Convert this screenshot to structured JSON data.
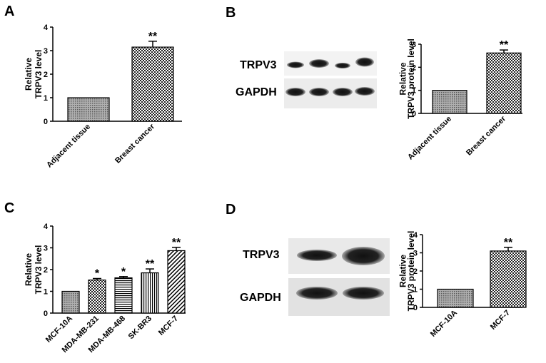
{
  "panels": [
    "A",
    "B",
    "C",
    "D"
  ],
  "blots": {
    "B": {
      "labels": [
        "TRPV3",
        "GAPDH"
      ]
    },
    "D": {
      "labels": [
        "TRPV3",
        "GAPDH"
      ]
    }
  },
  "chart_data": [
    {
      "id": "A",
      "type": "bar",
      "categories": [
        "Adjacent tissue",
        "Breast cancer"
      ],
      "values": [
        1.0,
        3.15
      ],
      "errors": [
        0,
        0.25
      ],
      "significance": [
        "",
        "**"
      ],
      "patterns": [
        "dots",
        "check"
      ],
      "ylabel_lines": [
        "Relative",
        "TRPV3 level"
      ],
      "ylim": [
        0,
        4
      ],
      "yticks": [
        0,
        1,
        2,
        3,
        4
      ]
    },
    {
      "id": "B",
      "type": "bar",
      "categories": [
        "Adjacent tissue",
        "Breast cancer"
      ],
      "values": [
        1.0,
        2.62
      ],
      "errors": [
        0,
        0.13
      ],
      "significance": [
        "",
        "**"
      ],
      "patterns": [
        "dots",
        "check"
      ],
      "ylabel_lines": [
        "Relative",
        "TRPV3 protein level"
      ],
      "ylim": [
        0,
        3
      ],
      "yticks": [
        0,
        1,
        2,
        3
      ]
    },
    {
      "id": "C",
      "type": "bar",
      "categories": [
        "MCF-10A",
        "MDA-MB-231",
        "MDA-MB-468",
        "SK-BR3",
        "MCF-7"
      ],
      "values": [
        1.0,
        1.52,
        1.62,
        1.85,
        2.87
      ],
      "errors": [
        0,
        0.07,
        0.06,
        0.18,
        0.15
      ],
      "significance": [
        "",
        "*",
        "*",
        "**",
        "**"
      ],
      "patterns": [
        "dots",
        "check",
        "hlines",
        "vlines",
        "diag"
      ],
      "ylabel_lines": [
        "Relative",
        "TRPV3 level"
      ],
      "ylim": [
        0,
        4
      ],
      "yticks": [
        0,
        1,
        2,
        3,
        4
      ]
    },
    {
      "id": "D",
      "type": "bar",
      "categories": [
        "MCF-10A",
        "MCF-7"
      ],
      "values": [
        1.0,
        3.1
      ],
      "errors": [
        0,
        0.2
      ],
      "significance": [
        "",
        "**"
      ],
      "patterns": [
        "dots",
        "check"
      ],
      "ylabel_lines": [
        "Relative",
        "TRPV3 protein level"
      ],
      "ylim": [
        0,
        4
      ],
      "yticks": [
        0,
        1,
        2,
        3,
        4
      ]
    }
  ]
}
